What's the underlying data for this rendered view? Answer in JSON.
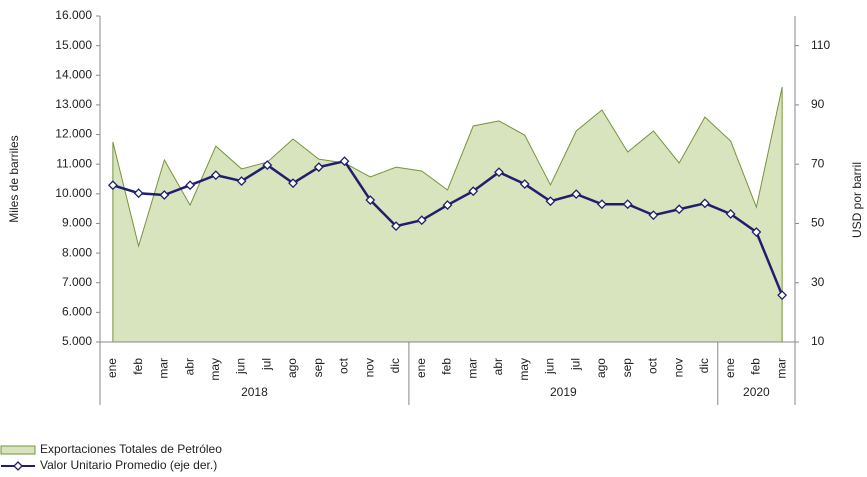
{
  "chart_data": {
    "type": "area_line",
    "categories": [
      "ene",
      "feb",
      "mar",
      "abr",
      "may",
      "jun",
      "jul",
      "ago",
      "sep",
      "oct",
      "nov",
      "dic",
      "ene",
      "feb",
      "mar",
      "abr",
      "may",
      "jun",
      "jul",
      "ago",
      "sep",
      "oct",
      "nov",
      "dic",
      "ene",
      "feb",
      "mar"
    ],
    "years": [
      "2018",
      "2019",
      "2020"
    ],
    "ylabel": "Miles de barriles",
    "y2label": "USD por barril",
    "ylim": [
      5000,
      16000
    ],
    "yticks": [
      {
        "value": 5000,
        "label": "5.000"
      },
      {
        "value": 6000,
        "label": "6.000"
      },
      {
        "value": 7000,
        "label": "7.000"
      },
      {
        "value": 8000,
        "label": "8.000"
      },
      {
        "value": 9000,
        "label": "9.000"
      },
      {
        "value": 10000,
        "label": "10.000"
      },
      {
        "value": 11000,
        "label": "11.000"
      },
      {
        "value": 12000,
        "label": "12.000"
      },
      {
        "value": 13000,
        "label": "13.000"
      },
      {
        "value": 14000,
        "label": "14.000"
      },
      {
        "value": 15000,
        "label": "15.000"
      },
      {
        "value": 16000,
        "label": "16.000"
      }
    ],
    "y2lim": [
      10,
      120
    ],
    "y2ticks": [
      10,
      30,
      50,
      70,
      90,
      110
    ],
    "series": [
      {
        "name": "Exportaciones Totales de Petróleo",
        "color": "#d7e4bd",
        "line_color": "#77933c",
        "values": [
          11750,
          8240,
          11140,
          9620,
          11610,
          10840,
          11070,
          11850,
          11170,
          11040,
          10570,
          10900,
          10770,
          10130,
          12290,
          12460,
          11980,
          10300,
          12120,
          12830,
          11410,
          12120,
          11040,
          12590,
          11780,
          9550,
          13600
        ]
      },
      {
        "name": "Valor Unitario Promedio (eje der.)",
        "color": "#1f1f6e",
        "axis": "y2",
        "values": [
          62.9,
          60.2,
          59.6,
          62.9,
          66.3,
          64.3,
          69.7,
          63.6,
          69,
          71,
          57.9,
          49.1,
          51.1,
          56.2,
          60.9,
          67.3,
          63.3,
          57.5,
          59.9,
          56.5,
          56.5,
          52.8,
          54.8,
          56.8,
          53.2,
          47.1,
          25.8
        ]
      }
    ]
  }
}
